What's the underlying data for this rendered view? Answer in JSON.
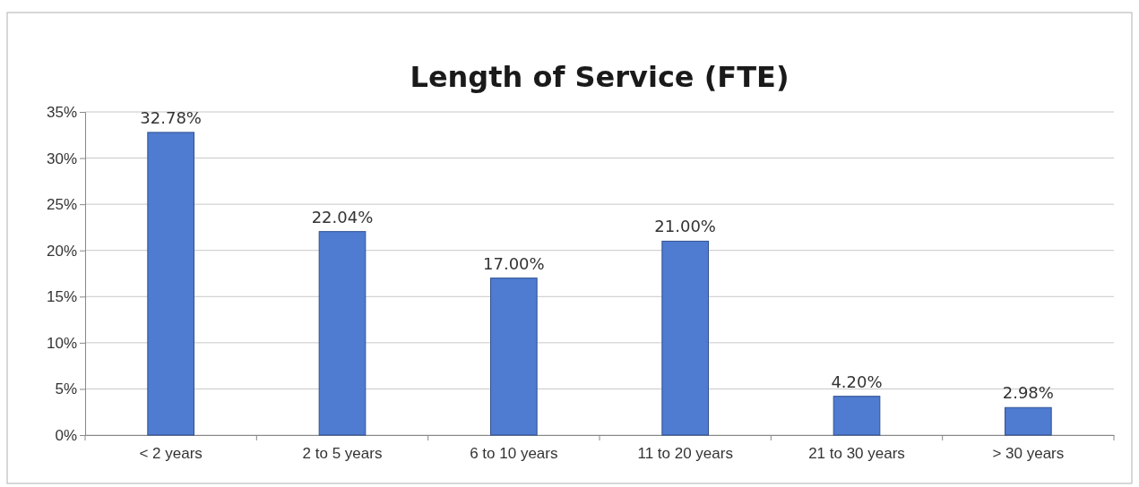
{
  "chart_data": {
    "type": "bar",
    "title": "Length of Service (FTE)",
    "categories": [
      "< 2 years",
      "2 to 5 years",
      "6 to 10 years",
      "11 to 20 years",
      "21 to 30 years",
      "> 30 years"
    ],
    "values": [
      32.78,
      22.04,
      17.0,
      21.0,
      4.2,
      2.98
    ],
    "value_labels": [
      "32.78%",
      "22.04%",
      "17.00%",
      "21.00%",
      "4.20%",
      "2.98%"
    ],
    "color": "#4f7bd0",
    "ylim": [
      0,
      35
    ],
    "yticks": [
      {
        "value": 0,
        "label": "0%"
      },
      {
        "value": 5,
        "label": "5%"
      },
      {
        "value": 10,
        "label": "10%"
      },
      {
        "value": 15,
        "label": "15%"
      },
      {
        "value": 20,
        "label": "20%"
      },
      {
        "value": 25,
        "label": "25%"
      },
      {
        "value": 30,
        "label": "30%"
      },
      {
        "value": 35,
        "label": "35%"
      }
    ],
    "grid": "y"
  }
}
